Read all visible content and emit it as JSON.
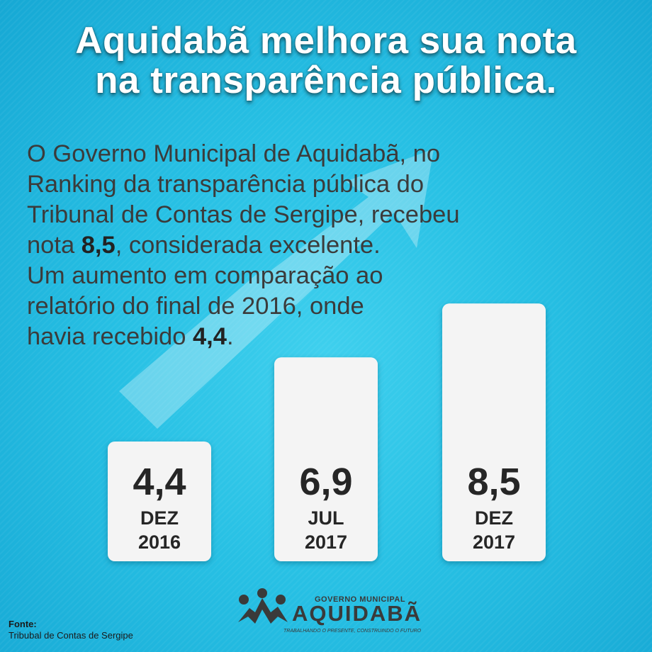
{
  "headline": {
    "line1": "Aquidabã melhora sua nota",
    "line2": "na transparência pública."
  },
  "body": {
    "line1": "O Governo Municipal de Aquidabã, no",
    "line2": "Ranking da transparência pública do",
    "line3": "Tribunal de Contas de Sergipe, recebeu",
    "line4_prefix": "nota ",
    "line4_value": "8,5",
    "line4_suffix": ", considerada excelente.",
    "line5": "Um aumento em comparação ao",
    "line6": "relatório do final de 2016, onde",
    "line7_prefix": "havia recebido ",
    "line7_value": "4,4",
    "line7_suffix": "."
  },
  "chart_data": {
    "type": "bar",
    "categories": [
      "DEZ 2016",
      "JUL 2017",
      "DEZ 2017"
    ],
    "category_lines": [
      [
        "DEZ",
        "2016"
      ],
      [
        "JUL",
        "2017"
      ],
      [
        "DEZ",
        "2017"
      ]
    ],
    "values": [
      4.4,
      6.9,
      8.5
    ],
    "value_labels": [
      "4,4",
      "6,9",
      "8,5"
    ],
    "title": "",
    "xlabel": "",
    "ylabel": "",
    "grid": false,
    "colors": {
      "bar": "#f4f4f4",
      "text": "#262626"
    }
  },
  "logo": {
    "top_text": "GOVERNO MUNICIPAL",
    "name": "AQUIDABÃ",
    "tagline": "TRABALHANDO O PRESENTE, CONSTRUINDO O FUTURO"
  },
  "source": {
    "title": "Fonte:",
    "text": "Tribubal de Contas de Sergipe"
  },
  "colors": {
    "background": "#27c0e4",
    "headline": "#ffffff",
    "body_text": "#3b3b3b",
    "logo_dark": "#3a3a3a"
  }
}
